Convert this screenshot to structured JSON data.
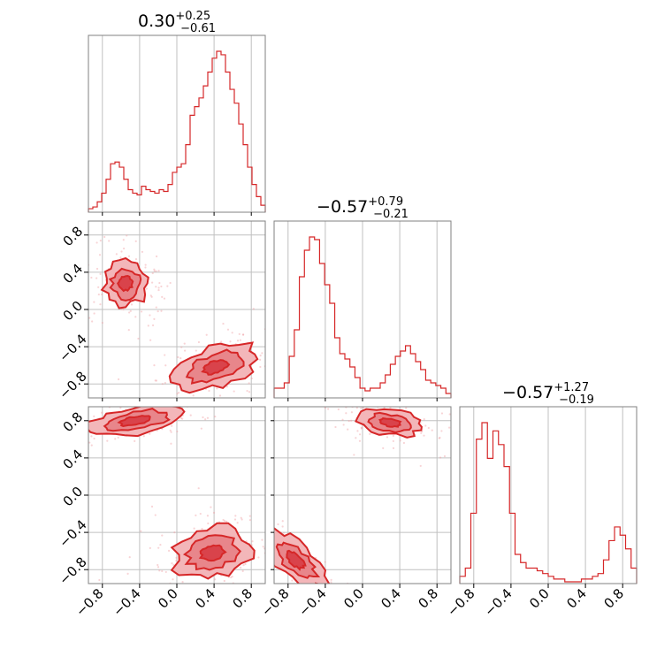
{
  "chart_data": {
    "type": "corner",
    "color": "#d62728",
    "axis_range": [
      -0.95,
      0.95
    ],
    "ticks": [
      -0.8,
      -0.4,
      0.0,
      0.4,
      0.8
    ],
    "tick_labels": [
      "−0.8",
      "−0.4",
      "0.0",
      "0.4",
      "0.8"
    ],
    "grid": true,
    "parameters": [
      {
        "title": {
          "value": "0.30",
          "upper": "+0.25",
          "lower": "−0.61"
        }
      },
      {
        "title": {
          "value": "−0.57",
          "upper": "+0.79",
          "lower": "−0.21"
        }
      },
      {
        "title": {
          "value": "−0.57",
          "upper": "+1.27",
          "lower": "−0.19"
        }
      }
    ],
    "histograms": [
      {
        "x_range": [
          -0.95,
          0.95
        ],
        "values": [
          1,
          2,
          5,
          10,
          18,
          27,
          28,
          25,
          18,
          12,
          10,
          9,
          14,
          12,
          11,
          10,
          12,
          11,
          15,
          22,
          25,
          27,
          38,
          55,
          60,
          65,
          72,
          80,
          88,
          92,
          90,
          80,
          70,
          62,
          50,
          38,
          25,
          15,
          8,
          3
        ]
      },
      {
        "x_range": [
          -0.95,
          0.95
        ],
        "values": [
          3,
          3,
          5,
          15,
          25,
          45,
          55,
          60,
          59,
          50,
          42,
          35,
          22,
          16,
          14,
          11,
          7,
          3,
          2,
          3,
          3,
          5,
          8,
          12,
          15,
          17,
          19,
          16,
          13,
          10,
          6,
          5,
          4,
          3,
          1
        ]
      },
      {
        "x_range": [
          -0.95,
          0.95
        ],
        "values": [
          2,
          5,
          25,
          52,
          58,
          45,
          55,
          50,
          42,
          25,
          10,
          7,
          5,
          5,
          4,
          3,
          2,
          1,
          1,
          0,
          0,
          0,
          1,
          1,
          2,
          3,
          8,
          15,
          20,
          17,
          12,
          5
        ]
      }
    ],
    "pairs": [
      {
        "x_param": 0,
        "y_param": 1,
        "modes": [
          {
            "center": [
              -0.55,
              0.28
            ],
            "spread": [
              0.12,
              0.12
            ],
            "corr": 0.0
          },
          {
            "center": [
              0.42,
              -0.62
            ],
            "spread": [
              0.18,
              0.12
            ],
            "corr": 0.5
          }
        ]
      },
      {
        "x_param": 0,
        "y_param": 2,
        "modes": [
          {
            "center": [
              -0.45,
              0.8
            ],
            "spread": [
              0.22,
              0.08
            ],
            "corr": 0.5
          },
          {
            "center": [
              0.38,
              -0.62
            ],
            "spread": [
              0.18,
              0.14
            ],
            "corr": 0.3
          }
        ]
      },
      {
        "x_param": 1,
        "y_param": 2,
        "modes": [
          {
            "center": [
              0.3,
              0.78
            ],
            "spread": [
              0.15,
              0.07
            ],
            "corr": -0.3
          },
          {
            "center": [
              -0.72,
              -0.7
            ],
            "spread": [
              0.14,
              0.14
            ],
            "corr": -0.9
          }
        ]
      }
    ]
  }
}
